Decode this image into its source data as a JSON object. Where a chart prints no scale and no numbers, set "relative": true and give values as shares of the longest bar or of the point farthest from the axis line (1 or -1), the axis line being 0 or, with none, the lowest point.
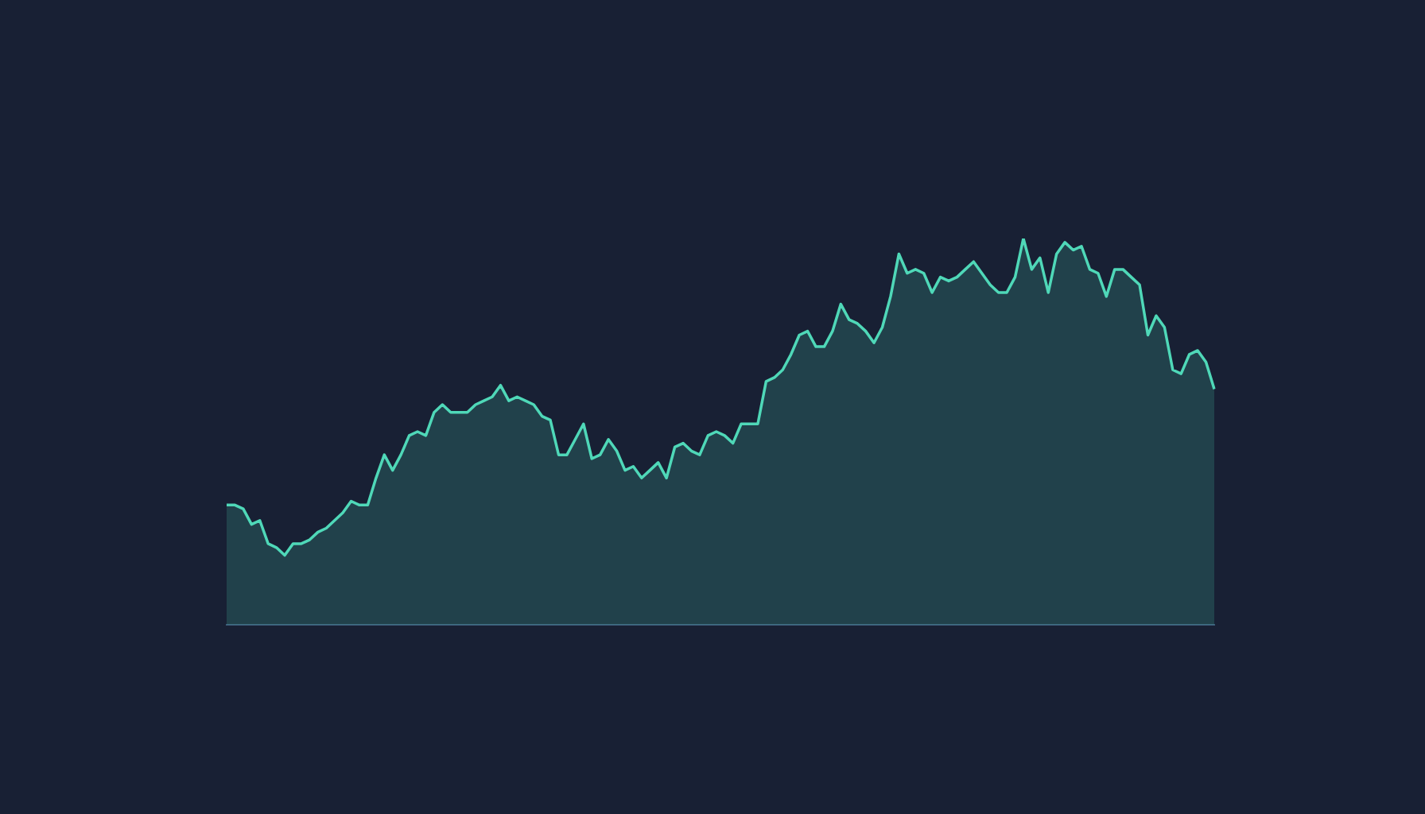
{
  "chart_data": {
    "type": "area",
    "relative": true,
    "color": "#4fd8b8",
    "categories": [
      null,
      null,
      null,
      null,
      null,
      null,
      null,
      null,
      null,
      null,
      null,
      null,
      null,
      null,
      null,
      null,
      null,
      null,
      null,
      null,
      null,
      null,
      null,
      null,
      null,
      null,
      null,
      null,
      null,
      null,
      null,
      null,
      null,
      null,
      null,
      null,
      null,
      null,
      null,
      null,
      null,
      null,
      null,
      null,
      null,
      null,
      null,
      null,
      null,
      null,
      null,
      null,
      null,
      null,
      null,
      null,
      null,
      null,
      null,
      null,
      null,
      null,
      null,
      null,
      null,
      null,
      null,
      null,
      null,
      null,
      null,
      null,
      null,
      null,
      null,
      null,
      null,
      null,
      null,
      null,
      null,
      null,
      null,
      null,
      null,
      null,
      null,
      null,
      null,
      null,
      null,
      null,
      null,
      null,
      null,
      null,
      null,
      null,
      null,
      null,
      null,
      null,
      null,
      null,
      null,
      null,
      null,
      null,
      null,
      null,
      null,
      null,
      null,
      null,
      null,
      null,
      null,
      null,
      null,
      null
    ],
    "values": [
      0.31,
      0.31,
      0.3,
      0.26,
      0.27,
      0.21,
      0.2,
      0.18,
      0.21,
      0.21,
      0.22,
      0.24,
      0.25,
      0.27,
      0.29,
      0.32,
      0.31,
      0.31,
      0.38,
      0.44,
      0.4,
      0.44,
      0.49,
      0.5,
      0.49,
      0.55,
      0.57,
      0.55,
      0.55,
      0.55,
      0.57,
      0.58,
      0.59,
      0.62,
      0.58,
      0.59,
      0.58,
      0.57,
      0.54,
      0.53,
      0.44,
      0.44,
      0.48,
      0.52,
      0.43,
      0.44,
      0.48,
      0.45,
      0.4,
      0.41,
      0.38,
      0.4,
      0.42,
      0.38,
      0.46,
      0.47,
      0.45,
      0.44,
      0.49,
      0.5,
      0.49,
      0.47,
      0.52,
      0.52,
      0.52,
      0.63,
      0.64,
      0.66,
      0.7,
      0.75,
      0.76,
      0.72,
      0.72,
      0.76,
      0.83,
      0.79,
      0.78,
      0.76,
      0.73,
      0.77,
      0.85,
      0.96,
      0.91,
      0.92,
      0.91,
      0.86,
      0.9,
      0.89,
      0.9,
      0.92,
      0.94,
      0.91,
      0.88,
      0.86,
      0.86,
      0.9,
      1,
      0.92,
      0.95,
      0.86,
      0.96,
      0.99,
      0.97,
      0.98,
      0.92,
      0.91,
      0.85,
      0.92,
      0.92,
      0.9,
      0.88,
      0.75,
      0.8,
      0.77,
      0.66,
      0.65,
      0.7,
      0.71,
      0.68,
      0.61
    ]
  }
}
